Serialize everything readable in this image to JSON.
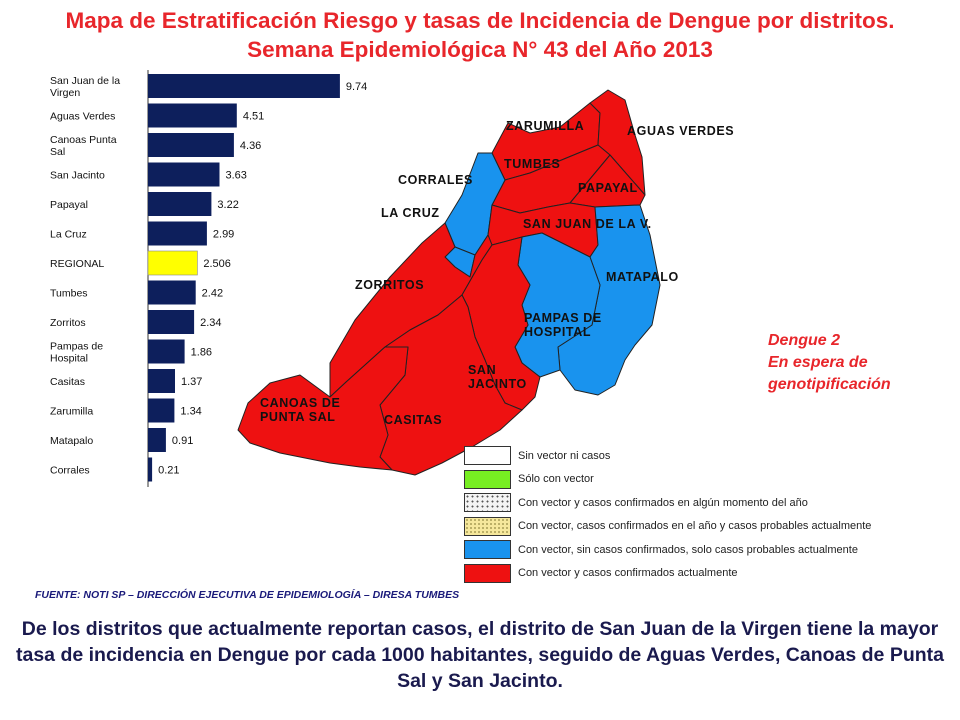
{
  "title": "Mapa de Estratificación Riesgo y tasas de Incidencia de Dengue por distritos. Semana Epidemiológica N° 43 del Año 2013",
  "chart_data": {
    "type": "bar",
    "orientation": "horizontal",
    "categories": [
      "San Juan de la Virgen",
      "Aguas Verdes",
      "Canoas Punta Sal",
      "San Jacinto",
      "Papayal",
      "La Cruz",
      "REGIONAL",
      "Tumbes",
      "Zorritos",
      "Pampas de Hospital",
      "Casitas",
      "Zarumilla",
      "Matapalo",
      "Corrales"
    ],
    "category_lines": [
      [
        "San Juan de la",
        "Virgen"
      ],
      [
        "Aguas Verdes"
      ],
      [
        "Canoas Punta",
        "Sal"
      ],
      [
        "San Jacinto"
      ],
      [
        "Papayal"
      ],
      [
        "La Cruz"
      ],
      [
        "REGIONAL"
      ],
      [
        "Tumbes"
      ],
      [
        "Zorritos"
      ],
      [
        "Pampas de",
        "Hospital"
      ],
      [
        "Casitas"
      ],
      [
        "Zarumilla"
      ],
      [
        "Matapalo"
      ],
      [
        "Corrales"
      ]
    ],
    "values": [
      9.74,
      4.51,
      4.36,
      3.63,
      3.22,
      2.99,
      2.506,
      2.42,
      2.34,
      1.86,
      1.37,
      1.34,
      0.91,
      0.21
    ],
    "value_labels": [
      "9.74",
      "4.51",
      "4.36",
      "3.63",
      "3.22",
      "2.99",
      "2.506",
      "2.42",
      "2.34",
      "1.86",
      "1.37",
      "1.34",
      "0.91",
      "0.21"
    ],
    "highlight": "REGIONAL",
    "colors": {
      "bar": "#0d1f5c",
      "highlight": "#ffff00"
    },
    "xlim": [
      0,
      10
    ],
    "title": "",
    "xlabel": "",
    "ylabel": ""
  },
  "map": {
    "labels": {
      "zarumilla": "ZARUMILLA",
      "aguas_verdes": "AGUAS VERDES",
      "tumbes": "TUMBES",
      "corrales": "CORRALES",
      "papayal": "PAPAYAL",
      "la_cruz": "LA CRUZ",
      "san_juan": "SAN JUAN DE LA V.",
      "matapalo": "MATAPALO",
      "zorritos": "ZORRITOS",
      "pampas": "PAMPAS DE HOSPITAL",
      "san_jacinto": "SAN JACINTO",
      "canoas": "CANOAS DE PUNTA SAL",
      "casitas": "CASITAS"
    },
    "colors": {
      "red": "#ee1111",
      "blue": "#1993ee"
    }
  },
  "note": {
    "line1": "Dengue 2",
    "line2": "En espera de",
    "line3": "genotipificación"
  },
  "legend": [
    {
      "text": "Sin vector ni casos",
      "swatch": "white"
    },
    {
      "text": "Sólo con vector",
      "swatch": "green"
    },
    {
      "text": "Con vector y casos  confirmados en algún momento del año",
      "swatch": "dotted"
    },
    {
      "text": "Con vector, casos confirmados en el año y casos probables actualmente",
      "swatch": "yellow"
    },
    {
      "text": "Con vector, sin casos  confirmados, solo casos probables actualmente",
      "swatch": "blue"
    },
    {
      "text": "Con vector y casos confirmados actualmente",
      "swatch": "red"
    }
  ],
  "source": "FUENTE: NOTI SP – DIRECCIÓN EJECUTIVA DE EPIDEMIOLOGÍA – DIRESA TUMBES",
  "caption": "De los distritos que actualmente reportan casos, el distrito de San Juan de la Virgen tiene la mayor tasa de incidencia en Dengue por cada 1000 habitantes, seguido de Aguas Verdes, Canoas de Punta Sal y San Jacinto."
}
